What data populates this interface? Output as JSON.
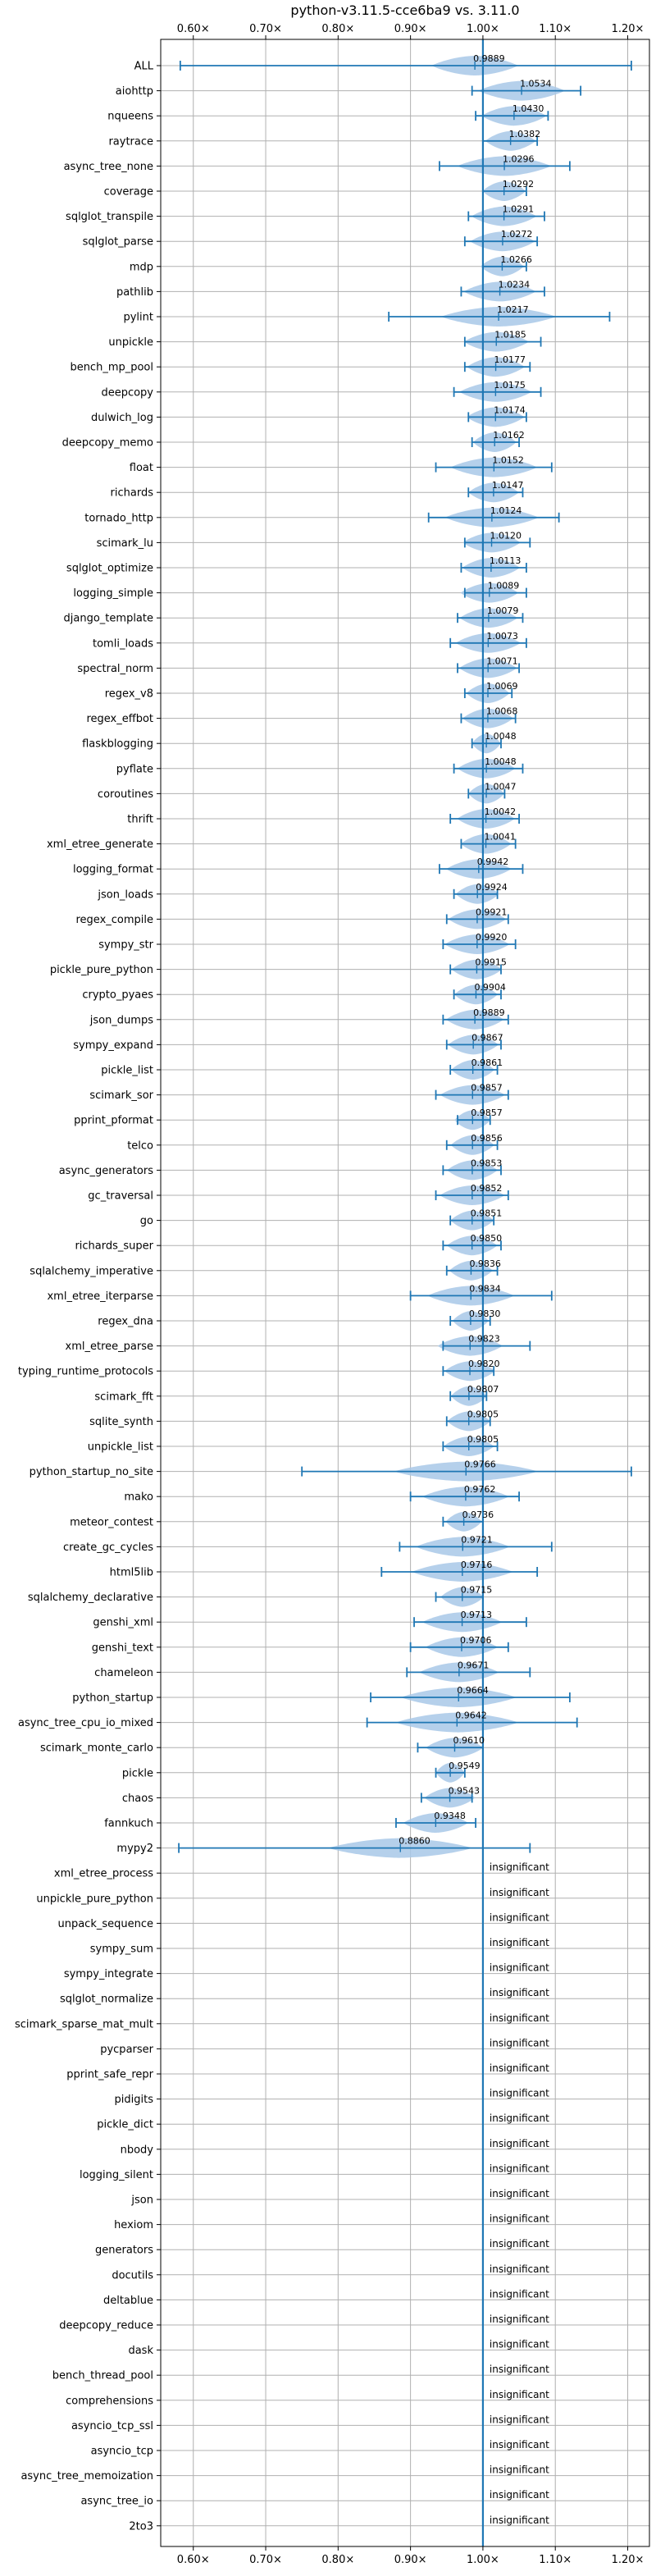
{
  "chart_data": {
    "type": "violin",
    "title": "python-v3.11.5-cce6ba9 vs. 3.11.0",
    "xlabel": "",
    "ylabel": "",
    "xlim": [
      0.555,
      1.23
    ],
    "x_ticks": [
      0.6,
      0.7,
      0.8,
      0.9,
      1.0,
      1.1,
      1.2
    ],
    "x_tick_labels": [
      "0.60×",
      "0.70×",
      "0.80×",
      "0.90×",
      "1.00×",
      "1.10×",
      "1.20×"
    ],
    "tick_labels_top_and_bottom": true,
    "reference_line": 1.0,
    "grid": true,
    "insignificant_label": "insignificant",
    "colors": {
      "violin": "#a8c8e8",
      "whisker": "#1f77b4",
      "grid": "#b0b0b0",
      "axis": "#000000"
    },
    "benchmarks": [
      {
        "name": "ALL",
        "label": "0.9889",
        "value": 0.9889,
        "min": 0.582,
        "max": 1.205,
        "spread": 0.06
      },
      {
        "name": "aiohttp",
        "label": "1.0534",
        "value": 1.0534,
        "min": 0.985,
        "max": 1.135,
        "spread": 0.06
      },
      {
        "name": "nqueens",
        "label": "1.0430",
        "value": 1.043,
        "min": 0.99,
        "max": 1.09,
        "spread": 0.045
      },
      {
        "name": "raytrace",
        "label": "1.0382",
        "value": 1.0382,
        "min": 1.0,
        "max": 1.075,
        "spread": 0.035
      },
      {
        "name": "async_tree_none",
        "label": "1.0296",
        "value": 1.0296,
        "min": 0.94,
        "max": 1.12,
        "spread": 0.065
      },
      {
        "name": "coverage",
        "label": "1.0292",
        "value": 1.0292,
        "min": 1.0,
        "max": 1.06,
        "spread": 0.03
      },
      {
        "name": "sqlglot_transpile",
        "label": "1.0291",
        "value": 1.0291,
        "min": 0.98,
        "max": 1.085,
        "spread": 0.045
      },
      {
        "name": "sqlglot_parse",
        "label": "1.0272",
        "value": 1.0272,
        "min": 0.975,
        "max": 1.075,
        "spread": 0.045
      },
      {
        "name": "mdp",
        "label": "1.0266",
        "value": 1.0266,
        "min": 1.0,
        "max": 1.06,
        "spread": 0.03
      },
      {
        "name": "pathlib",
        "label": "1.0234",
        "value": 1.0234,
        "min": 0.97,
        "max": 1.085,
        "spread": 0.05
      },
      {
        "name": "pylint",
        "label": "1.0217",
        "value": 1.0217,
        "min": 0.87,
        "max": 1.175,
        "spread": 0.08
      },
      {
        "name": "unpickle",
        "label": "1.0185",
        "value": 1.0185,
        "min": 0.975,
        "max": 1.08,
        "spread": 0.045
      },
      {
        "name": "bench_mp_pool",
        "label": "1.0177",
        "value": 1.0177,
        "min": 0.975,
        "max": 1.065,
        "spread": 0.04
      },
      {
        "name": "deepcopy",
        "label": "1.0175",
        "value": 1.0175,
        "min": 0.96,
        "max": 1.08,
        "spread": 0.05
      },
      {
        "name": "dulwich_log",
        "label": "1.0174",
        "value": 1.0174,
        "min": 0.98,
        "max": 1.06,
        "spread": 0.04
      },
      {
        "name": "deepcopy_memo",
        "label": "1.0162",
        "value": 1.0162,
        "min": 0.985,
        "max": 1.05,
        "spread": 0.03
      },
      {
        "name": "float",
        "label": "1.0152",
        "value": 1.0152,
        "min": 0.935,
        "max": 1.095,
        "spread": 0.06
      },
      {
        "name": "richards",
        "label": "1.0147",
        "value": 1.0147,
        "min": 0.98,
        "max": 1.055,
        "spread": 0.035
      },
      {
        "name": "tornado_http",
        "label": "1.0124",
        "value": 1.0124,
        "min": 0.925,
        "max": 1.105,
        "spread": 0.065
      },
      {
        "name": "scimark_lu",
        "label": "1.0120",
        "value": 1.012,
        "min": 0.975,
        "max": 1.065,
        "spread": 0.04
      },
      {
        "name": "sqlglot_optimize",
        "label": "1.0113",
        "value": 1.0113,
        "min": 0.97,
        "max": 1.06,
        "spread": 0.04
      },
      {
        "name": "logging_simple",
        "label": "1.0089",
        "value": 1.0089,
        "min": 0.975,
        "max": 1.06,
        "spread": 0.04
      },
      {
        "name": "django_template",
        "label": "1.0079",
        "value": 1.0079,
        "min": 0.965,
        "max": 1.055,
        "spread": 0.04
      },
      {
        "name": "tomli_loads",
        "label": "1.0073",
        "value": 1.0073,
        "min": 0.955,
        "max": 1.06,
        "spread": 0.045
      },
      {
        "name": "spectral_norm",
        "label": "1.0071",
        "value": 1.0071,
        "min": 0.965,
        "max": 1.05,
        "spread": 0.04
      },
      {
        "name": "regex_v8",
        "label": "1.0069",
        "value": 1.0069,
        "min": 0.975,
        "max": 1.04,
        "spread": 0.03
      },
      {
        "name": "regex_effbot",
        "label": "1.0068",
        "value": 1.0068,
        "min": 0.97,
        "max": 1.045,
        "spread": 0.035
      },
      {
        "name": "flaskblogging",
        "label": "1.0048",
        "value": 1.0048,
        "min": 0.985,
        "max": 1.025,
        "spread": 0.02
      },
      {
        "name": "pyflate",
        "label": "1.0048",
        "value": 1.0048,
        "min": 0.96,
        "max": 1.055,
        "spread": 0.04
      },
      {
        "name": "coroutines",
        "label": "1.0047",
        "value": 1.0047,
        "min": 0.98,
        "max": 1.03,
        "spread": 0.025
      },
      {
        "name": "thrift",
        "label": "1.0042",
        "value": 1.0042,
        "min": 0.955,
        "max": 1.05,
        "spread": 0.04
      },
      {
        "name": "xml_etree_generate",
        "label": "1.0041",
        "value": 1.0041,
        "min": 0.97,
        "max": 1.045,
        "spread": 0.035
      },
      {
        "name": "logging_format",
        "label": "0.9942",
        "value": 0.9942,
        "min": 0.94,
        "max": 1.055,
        "spread": 0.045
      },
      {
        "name": "json_loads",
        "label": "0.9924",
        "value": 0.9924,
        "min": 0.96,
        "max": 1.02,
        "spread": 0.03
      },
      {
        "name": "regex_compile",
        "label": "0.9921",
        "value": 0.9921,
        "min": 0.95,
        "max": 1.035,
        "spread": 0.04
      },
      {
        "name": "sympy_str",
        "label": "0.9920",
        "value": 0.992,
        "min": 0.945,
        "max": 1.045,
        "spread": 0.045
      },
      {
        "name": "pickle_pure_python",
        "label": "0.9915",
        "value": 0.9915,
        "min": 0.955,
        "max": 1.025,
        "spread": 0.035
      },
      {
        "name": "crypto_pyaes",
        "label": "0.9904",
        "value": 0.9904,
        "min": 0.96,
        "max": 1.025,
        "spread": 0.03
      },
      {
        "name": "json_dumps",
        "label": "0.9889",
        "value": 0.9889,
        "min": 0.945,
        "max": 1.035,
        "spread": 0.04
      },
      {
        "name": "sympy_expand",
        "label": "0.9867",
        "value": 0.9867,
        "min": 0.95,
        "max": 1.025,
        "spread": 0.035
      },
      {
        "name": "pickle_list",
        "label": "0.9861",
        "value": 0.9861,
        "min": 0.955,
        "max": 1.02,
        "spread": 0.03
      },
      {
        "name": "scimark_sor",
        "label": "0.9857",
        "value": 0.9857,
        "min": 0.935,
        "max": 1.035,
        "spread": 0.045
      },
      {
        "name": "pprint_pformat",
        "label": "0.9857",
        "value": 0.9857,
        "min": 0.965,
        "max": 1.01,
        "spread": 0.025
      },
      {
        "name": "telco",
        "label": "0.9856",
        "value": 0.9856,
        "min": 0.95,
        "max": 1.02,
        "spread": 0.03
      },
      {
        "name": "async_generators",
        "label": "0.9853",
        "value": 0.9853,
        "min": 0.945,
        "max": 1.025,
        "spread": 0.035
      },
      {
        "name": "gc_traversal",
        "label": "0.9852",
        "value": 0.9852,
        "min": 0.935,
        "max": 1.035,
        "spread": 0.045
      },
      {
        "name": "go",
        "label": "0.9851",
        "value": 0.9851,
        "min": 0.955,
        "max": 1.015,
        "spread": 0.03
      },
      {
        "name": "richards_super",
        "label": "0.9850",
        "value": 0.985,
        "min": 0.945,
        "max": 1.025,
        "spread": 0.035
      },
      {
        "name": "sqlalchemy_imperative",
        "label": "0.9836",
        "value": 0.9836,
        "min": 0.95,
        "max": 1.02,
        "spread": 0.03
      },
      {
        "name": "xml_etree_iterparse",
        "label": "0.9834",
        "value": 0.9834,
        "min": 0.9,
        "max": 1.095,
        "spread": 0.06
      },
      {
        "name": "regex_dna",
        "label": "0.9830",
        "value": 0.983,
        "min": 0.955,
        "max": 1.01,
        "spread": 0.025
      },
      {
        "name": "xml_etree_parse",
        "label": "0.9823",
        "value": 0.9823,
        "min": 0.945,
        "max": 1.065,
        "spread": 0.045
      },
      {
        "name": "typing_runtime_protocols",
        "label": "0.9820",
        "value": 0.982,
        "min": 0.945,
        "max": 1.015,
        "spread": 0.035
      },
      {
        "name": "scimark_fft",
        "label": "0.9807",
        "value": 0.9807,
        "min": 0.955,
        "max": 1.005,
        "spread": 0.025
      },
      {
        "name": "sqlite_synth",
        "label": "0.9805",
        "value": 0.9805,
        "min": 0.95,
        "max": 1.01,
        "spread": 0.03
      },
      {
        "name": "unpickle_list",
        "label": "0.9805",
        "value": 0.9805,
        "min": 0.945,
        "max": 1.02,
        "spread": 0.035
      },
      {
        "name": "python_startup_no_site",
        "label": "0.9766",
        "value": 0.9766,
        "min": 0.75,
        "max": 1.205,
        "spread": 0.1
      },
      {
        "name": "mako",
        "label": "0.9762",
        "value": 0.9762,
        "min": 0.9,
        "max": 1.05,
        "spread": 0.06
      },
      {
        "name": "meteor_contest",
        "label": "0.9736",
        "value": 0.9736,
        "min": 0.945,
        "max": 1.0,
        "spread": 0.025
      },
      {
        "name": "create_gc_cycles",
        "label": "0.9721",
        "value": 0.9721,
        "min": 0.885,
        "max": 1.095,
        "spread": 0.065
      },
      {
        "name": "html5lib",
        "label": "0.9716",
        "value": 0.9716,
        "min": 0.86,
        "max": 1.075,
        "spread": 0.07
      },
      {
        "name": "sqlalchemy_declarative",
        "label": "0.9715",
        "value": 0.9715,
        "min": 0.935,
        "max": 1.0,
        "spread": 0.03
      },
      {
        "name": "genshi_xml",
        "label": "0.9713",
        "value": 0.9713,
        "min": 0.905,
        "max": 1.06,
        "spread": 0.055
      },
      {
        "name": "genshi_text",
        "label": "0.9706",
        "value": 0.9706,
        "min": 0.9,
        "max": 1.035,
        "spread": 0.05
      },
      {
        "name": "chameleon",
        "label": "0.9671",
        "value": 0.9671,
        "min": 0.895,
        "max": 1.065,
        "spread": 0.055
      },
      {
        "name": "python_startup",
        "label": "0.9664",
        "value": 0.9664,
        "min": 0.845,
        "max": 1.12,
        "spread": 0.08
      },
      {
        "name": "async_tree_cpu_io_mixed",
        "label": "0.9642",
        "value": 0.9642,
        "min": 0.84,
        "max": 1.13,
        "spread": 0.085
      },
      {
        "name": "scimark_monte_carlo",
        "label": "0.9610",
        "value": 0.961,
        "min": 0.91,
        "max": 1.0,
        "spread": 0.04
      },
      {
        "name": "pickle",
        "label": "0.9549",
        "value": 0.9549,
        "min": 0.935,
        "max": 0.975,
        "spread": 0.02
      },
      {
        "name": "chaos",
        "label": "0.9543",
        "value": 0.9543,
        "min": 0.915,
        "max": 0.985,
        "spread": 0.035
      },
      {
        "name": "fannkuch",
        "label": "0.9348",
        "value": 0.9348,
        "min": 0.88,
        "max": 0.99,
        "spread": 0.045
      },
      {
        "name": "mypy2",
        "label": "0.8860",
        "value": 0.886,
        "min": 0.58,
        "max": 1.065,
        "spread": 0.1
      },
      {
        "name": "xml_etree_process",
        "insignificant": true
      },
      {
        "name": "unpickle_pure_python",
        "insignificant": true
      },
      {
        "name": "unpack_sequence",
        "insignificant": true
      },
      {
        "name": "sympy_sum",
        "insignificant": true
      },
      {
        "name": "sympy_integrate",
        "insignificant": true
      },
      {
        "name": "sqlglot_normalize",
        "insignificant": true
      },
      {
        "name": "scimark_sparse_mat_mult",
        "insignificant": true
      },
      {
        "name": "pycparser",
        "insignificant": true
      },
      {
        "name": "pprint_safe_repr",
        "insignificant": true
      },
      {
        "name": "pidigits",
        "insignificant": true
      },
      {
        "name": "pickle_dict",
        "insignificant": true
      },
      {
        "name": "nbody",
        "insignificant": true
      },
      {
        "name": "logging_silent",
        "insignificant": true
      },
      {
        "name": "json",
        "insignificant": true
      },
      {
        "name": "hexiom",
        "insignificant": true
      },
      {
        "name": "generators",
        "insignificant": true
      },
      {
        "name": "docutils",
        "insignificant": true
      },
      {
        "name": "deltablue",
        "insignificant": true
      },
      {
        "name": "deepcopy_reduce",
        "insignificant": true
      },
      {
        "name": "dask",
        "insignificant": true
      },
      {
        "name": "bench_thread_pool",
        "insignificant": true
      },
      {
        "name": "comprehensions",
        "insignificant": true
      },
      {
        "name": "asyncio_tcp_ssl",
        "insignificant": true
      },
      {
        "name": "asyncio_tcp",
        "insignificant": true
      },
      {
        "name": "async_tree_memoization",
        "insignificant": true
      },
      {
        "name": "async_tree_io",
        "insignificant": true
      },
      {
        "name": "2to3",
        "insignificant": true
      }
    ]
  }
}
